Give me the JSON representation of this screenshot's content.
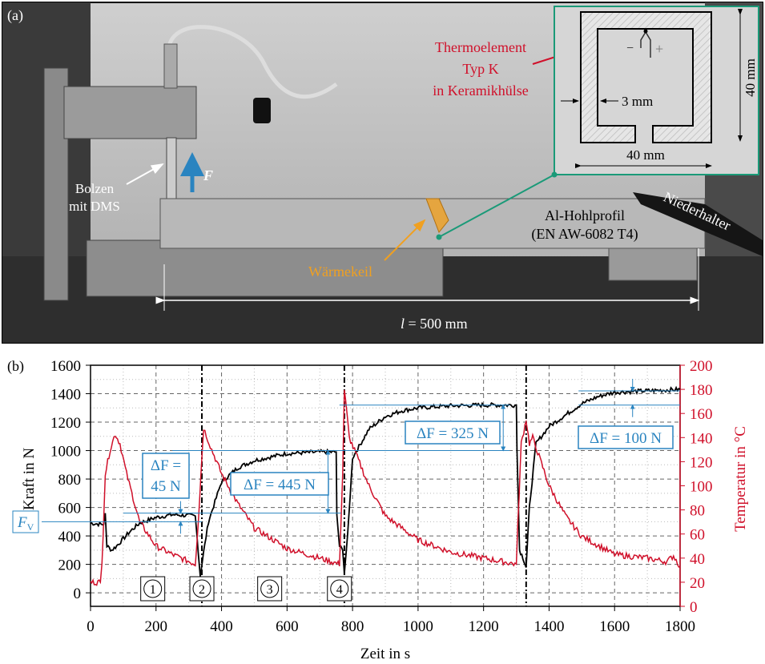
{
  "panel_a": {
    "label": "(a)",
    "bolzen": "Bolzen",
    "mit_dms": "mit DMS",
    "force_symbol": "F",
    "thermo_line1": "Thermoelement",
    "thermo_line2": "Typ K",
    "thermo_line3": "in Keramikhülse",
    "inset_wall": "3 mm",
    "inset_width": "40 mm",
    "inset_height": "40 mm",
    "minus": "−",
    "plus": "+",
    "profile_line1": "Al-Hohlprofil",
    "profile_line2": "(EN AW-6082 T4)",
    "waermekeil": "Wärmekeil",
    "niederhalter": "Niederhalter",
    "length_l": "l",
    "length_value": "= 500 mm",
    "colors": {
      "red": "#d0102a",
      "orange": "#f0a020",
      "green": "#1a9a78",
      "blue": "#2a84c0"
    }
  },
  "chart_data": {
    "type": "line",
    "panel_label": "(b)",
    "xlabel": "Zeit in s",
    "ylabel": "Kraft in N",
    "ylabel_right": "Temperatur in °C",
    "xlim": [
      0,
      1800
    ],
    "ylim": [
      -95,
      1600
    ],
    "ylim_right": [
      0,
      200
    ],
    "xticks": [
      "0",
      "200",
      "400",
      "600",
      "800",
      "1000",
      "1200",
      "1400",
      "1600",
      "1800"
    ],
    "yticks": [
      "0",
      "200",
      "400",
      "600",
      "800",
      "1000",
      "1200",
      "1400",
      "1600"
    ],
    "yticks_right": [
      "0",
      "20",
      "40",
      "60",
      "80",
      "100",
      "120",
      "140",
      "160",
      "180",
      "200"
    ],
    "grid": true,
    "phase_markers": [
      340,
      775,
      1330
    ],
    "phases": [
      "1",
      "2",
      "3",
      "4"
    ],
    "fv_label": "F",
    "fv_sub": "V",
    "fv_value": 500,
    "annotations": [
      {
        "text1": "ΔF =",
        "text2": "45 N",
        "from": 500,
        "to": 560
      },
      {
        "text1": "ΔF = 445 N",
        "from": 560,
        "to": 1000
      },
      {
        "text1": "ΔF = 325 N",
        "from": 1000,
        "to": 1320
      },
      {
        "text1": "ΔF = 100 N",
        "from": 1320,
        "to": 1420
      }
    ],
    "series": [
      {
        "name": "Kraft",
        "axis": "left",
        "color": "#000000",
        "x": [
          0,
          40,
          45,
          50,
          65,
          80,
          120,
          150,
          200,
          250,
          320,
          325,
          335,
          345,
          360,
          400,
          450,
          500,
          600,
          700,
          750,
          752,
          760,
          770,
          775,
          785,
          800,
          850,
          900,
          950,
          1000,
          1100,
          1200,
          1300,
          1302,
          1310,
          1320,
          1330,
          1340,
          1360,
          1400,
          1450,
          1500,
          1550,
          1600,
          1700,
          1800
        ],
        "y": [
          490,
          480,
          560,
          330,
          300,
          330,
          430,
          490,
          530,
          550,
          540,
          400,
          120,
          280,
          500,
          780,
          880,
          930,
          980,
          990,
          990,
          550,
          330,
          300,
          150,
          400,
          950,
          1150,
          1240,
          1280,
          1300,
          1315,
          1320,
          1320,
          1000,
          300,
          250,
          180,
          600,
          1050,
          1170,
          1250,
          1330,
          1380,
          1410,
          1420,
          1430
        ]
      },
      {
        "name": "Temperatur",
        "axis": "right",
        "color": "#d0102a",
        "x": [
          0,
          30,
          35,
          45,
          60,
          75,
          90,
          110,
          150,
          200,
          250,
          320,
          330,
          345,
          370,
          400,
          450,
          500,
          600,
          700,
          760,
          770,
          775,
          790,
          850,
          900,
          1000,
          1100,
          1200,
          1300,
          1305,
          1315,
          1330,
          1340,
          1350,
          1400,
          1450,
          1500,
          1600,
          1700,
          1760,
          1780,
          1800
        ],
        "y": [
          20,
          20,
          35,
          110,
          130,
          143,
          135,
          110,
          70,
          50,
          43,
          35,
          75,
          148,
          130,
          110,
          85,
          65,
          48,
          40,
          35,
          110,
          180,
          140,
          100,
          75,
          55,
          45,
          40,
          35,
          70,
          135,
          155,
          135,
          140,
          100,
          75,
          58,
          43,
          40,
          37,
          42,
          33
        ]
      }
    ]
  }
}
